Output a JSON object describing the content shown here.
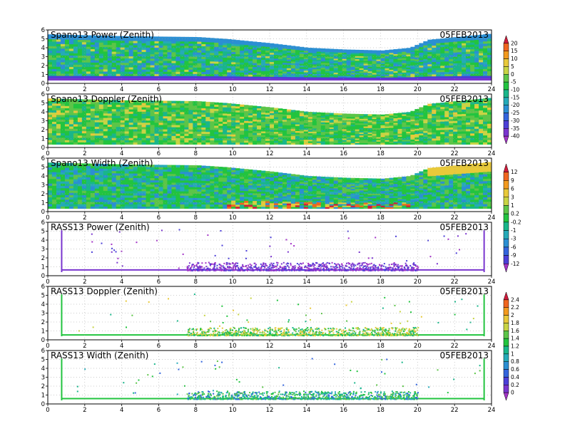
{
  "date_label": "05FEB2013",
  "chart_data": [
    {
      "type": "heatmap",
      "title": "Spano13 Power (Zenith)",
      "xlim": [
        0,
        24
      ],
      "ylim": [
        0,
        6
      ],
      "x_ticks": [
        "0",
        "2",
        "4",
        "6",
        "8",
        "10",
        "12",
        "14",
        "16",
        "18",
        "20",
        "22",
        "24"
      ],
      "y_ticks": [
        "0",
        "1",
        "2",
        "3",
        "4",
        "5",
        "6"
      ],
      "grid": true,
      "field": "dense",
      "palette": "power",
      "top_height": [
        5.5,
        5.3,
        5.2,
        5.0,
        4.5,
        4.0,
        3.8,
        3.7,
        4.0,
        4.9,
        5.6
      ],
      "top_height_hours": [
        0,
        4,
        8,
        9.5,
        12,
        14,
        16,
        18,
        19.5,
        20.5,
        24
      ]
    },
    {
      "type": "heatmap",
      "title": "Spano13 Doppler (Zenith)",
      "xlim": [
        0,
        24
      ],
      "ylim": [
        0,
        6
      ],
      "x_ticks": [
        "0",
        "2",
        "4",
        "6",
        "8",
        "10",
        "12",
        "14",
        "16",
        "18",
        "20",
        "22",
        "24"
      ],
      "y_ticks": [
        "0",
        "1",
        "2",
        "3",
        "4",
        "5",
        "6"
      ],
      "grid": true,
      "field": "dense",
      "palette": "doppler",
      "top_height": [
        5.5,
        5.3,
        5.2,
        5.0,
        4.5,
        4.0,
        3.8,
        3.7,
        4.0,
        4.9,
        5.6
      ],
      "top_height_hours": [
        0,
        4,
        8,
        9.5,
        12,
        14,
        16,
        18,
        19.5,
        20.5,
        24
      ]
    },
    {
      "type": "heatmap",
      "title": "Spano13 Width (Zenith)",
      "xlim": [
        0,
        24
      ],
      "ylim": [
        0,
        6
      ],
      "x_ticks": [
        "0",
        "2",
        "4",
        "6",
        "8",
        "10",
        "12",
        "14",
        "16",
        "18",
        "20",
        "22",
        "24"
      ],
      "y_ticks": [
        "0",
        "1",
        "2",
        "3",
        "4",
        "5",
        "6"
      ],
      "grid": true,
      "field": "dense",
      "palette": "width",
      "top_height": [
        5.5,
        5.3,
        5.2,
        5.0,
        4.5,
        4.0,
        3.8,
        3.7,
        4.0,
        4.9,
        5.6
      ],
      "top_height_hours": [
        0,
        4,
        8,
        9.5,
        12,
        14,
        16,
        18,
        19.5,
        20.5,
        24
      ]
    },
    {
      "type": "scatter",
      "title": "RASS13 Power (Zenith)",
      "xlim": [
        0,
        24
      ],
      "ylim": [
        0,
        6
      ],
      "x_ticks": [
        "0",
        "2",
        "4",
        "6",
        "8",
        "10",
        "12",
        "14",
        "16",
        "18",
        "20",
        "22",
        "24"
      ],
      "y_ticks": [
        "0",
        "1",
        "2",
        "3",
        "4",
        "5",
        "6"
      ],
      "grid": true,
      "field": "sparse",
      "palette": "power",
      "base_height": 0.65,
      "vertical_lines_hours": [
        0.75,
        23.6
      ]
    },
    {
      "type": "scatter",
      "title": "RASS13 Doppler (Zenith)",
      "xlim": [
        0,
        24
      ],
      "ylim": [
        0,
        6
      ],
      "x_ticks": [
        "0",
        "2",
        "4",
        "6",
        "8",
        "10",
        "12",
        "14",
        "16",
        "18",
        "20",
        "22",
        "24"
      ],
      "y_ticks": [
        "0",
        "1",
        "2",
        "3",
        "4",
        "5",
        "6"
      ],
      "grid": true,
      "field": "sparse",
      "palette": "rassdoppler",
      "base_height": 0.55,
      "vertical_lines_hours": [
        0.75,
        23.6
      ]
    },
    {
      "type": "scatter",
      "title": "RASS13 Width (Zenith)",
      "xlim": [
        0,
        24
      ],
      "ylim": [
        0,
        6
      ],
      "x_ticks": [
        "0",
        "2",
        "4",
        "6",
        "8",
        "10",
        "12",
        "14",
        "16",
        "18",
        "20",
        "22",
        "24"
      ],
      "y_ticks": [
        "0",
        "1",
        "2",
        "3",
        "4",
        "5",
        "6"
      ],
      "grid": true,
      "field": "sparse",
      "palette": "rasswidth",
      "base_height": 0.6,
      "vertical_lines_hours": [
        0.75,
        23.6
      ]
    }
  ],
  "colorbars": [
    {
      "labels": [
        "20",
        "15",
        "10",
        "5",
        "0",
        "-5",
        "-10",
        "-15",
        "-20",
        "-25",
        "-30",
        "-35",
        "-40"
      ],
      "colors": [
        "#d11c3c",
        "#f0661f",
        "#f39a1e",
        "#e8c93a",
        "#c8d444",
        "#5cc548",
        "#22c43f",
        "#19b68a",
        "#25aab8",
        "#2b8fd3",
        "#3465dd",
        "#4c3fd8",
        "#7a35cf",
        "#a334c7"
      ]
    },
    {
      "labels": [
        "12",
        "9",
        "6",
        "3",
        "1",
        "0.2",
        "-0.2",
        "-1",
        "-3",
        "-6",
        "-9",
        "-12"
      ],
      "colors": [
        "#d11c3c",
        "#f0661f",
        "#f39a1e",
        "#e8c93a",
        "#c8d444",
        "#5cc548",
        "#22c43f",
        "#19b68a",
        "#25aab8",
        "#2b8fd3",
        "#3465dd",
        "#4c3fd8",
        "#a334c7"
      ]
    },
    {
      "labels": [
        "2.4",
        "2.2",
        "2",
        "1.8",
        "1.6",
        "1.4",
        "1.2",
        "1",
        "0.8",
        "0.6",
        "0.4",
        "0.2",
        "0"
      ],
      "colors": [
        "#d11c3c",
        "#f0661f",
        "#f39a1e",
        "#e8c93a",
        "#c8d444",
        "#5cc548",
        "#22c43f",
        "#19b68a",
        "#25aab8",
        "#2b8fd3",
        "#3465dd",
        "#4c3fd8",
        "#7a35cf",
        "#a334c7"
      ]
    }
  ]
}
